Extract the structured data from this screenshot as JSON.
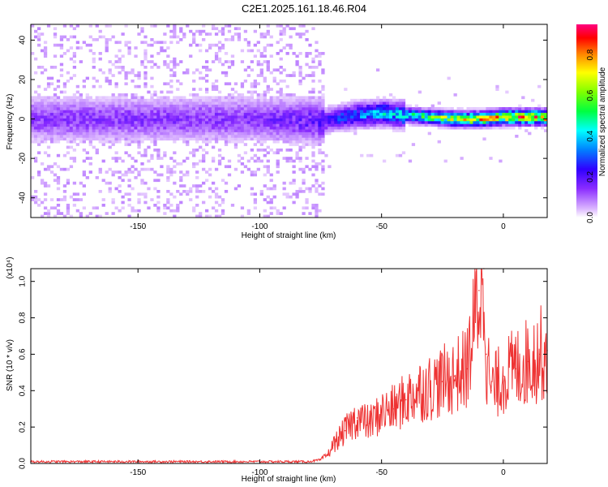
{
  "figure_title": "C2E1.2025.161.18.46.R04",
  "chart_data": [
    {
      "type": "heatmap",
      "name": "spectrogram",
      "xlabel": "Height of straight line (km)",
      "ylabel": "Frequency (Hz)",
      "xlim": [
        -194,
        18
      ],
      "ylim": [
        -50,
        48
      ],
      "xticks": [
        "-150",
        "-100",
        "-50",
        "0"
      ],
      "yticks": [
        "-40",
        "-20",
        "0",
        "20",
        "40"
      ],
      "colorbar": {
        "label": "Normalized spectral amplitude",
        "range": [
          0,
          0.95
        ],
        "ticks": [
          "0.0",
          "0.2",
          "0.4",
          "0.6",
          "0.8"
        ],
        "colormap": [
          "#ffffff",
          "#b070ff",
          "#6a00ff",
          "#0000ff",
          "#00ffff",
          "#00ff00",
          "#ffff00",
          "#ff8000",
          "#ff0000",
          "#ff0080"
        ]
      },
      "signal_track": {
        "description_points_x_km": [
          -194,
          -150,
          -100,
          -75,
          -60,
          -50,
          -40,
          -30,
          -20,
          -10,
          0,
          18
        ],
        "center_freq_hz": [
          0,
          0,
          0,
          -1,
          2,
          3,
          2,
          1,
          0,
          0,
          1,
          1
        ],
        "peak_amplitude": [
          0.15,
          0.15,
          0.15,
          0.2,
          0.35,
          0.4,
          0.45,
          0.55,
          0.7,
          0.75,
          0.8,
          0.85
        ]
      }
    },
    {
      "type": "line",
      "name": "snr",
      "xlabel": "Height of straight line (km)",
      "ylabel": "SNR (10 * v/v)",
      "y_multiplier": "(x10⁴)",
      "xlim": [
        -194,
        18
      ],
      "ylim": [
        0,
        1.07
      ],
      "xticks": [
        "-150",
        "-100",
        "-50",
        "0"
      ],
      "yticks": [
        "0.0",
        "0.2",
        "0.4",
        "0.6",
        "0.8",
        "1.0"
      ],
      "color": "#ee3333",
      "x": [
        -194,
        -150,
        -100,
        -80,
        -75,
        -72,
        -70,
        -65,
        -60,
        -55,
        -50,
        -45,
        -40,
        -35,
        -30,
        -25,
        -20,
        -15,
        -12,
        -10,
        -8,
        -7,
        -5,
        0,
        5,
        10,
        15,
        18
      ],
      "y": [
        0.01,
        0.01,
        0.01,
        0.01,
        0.02,
        0.05,
        0.1,
        0.18,
        0.25,
        0.22,
        0.28,
        0.3,
        0.35,
        0.4,
        0.42,
        0.45,
        0.48,
        0.52,
        0.75,
        0.95,
        1.07,
        0.6,
        0.4,
        0.48,
        0.52,
        0.56,
        0.6,
        0.62
      ]
    }
  ]
}
